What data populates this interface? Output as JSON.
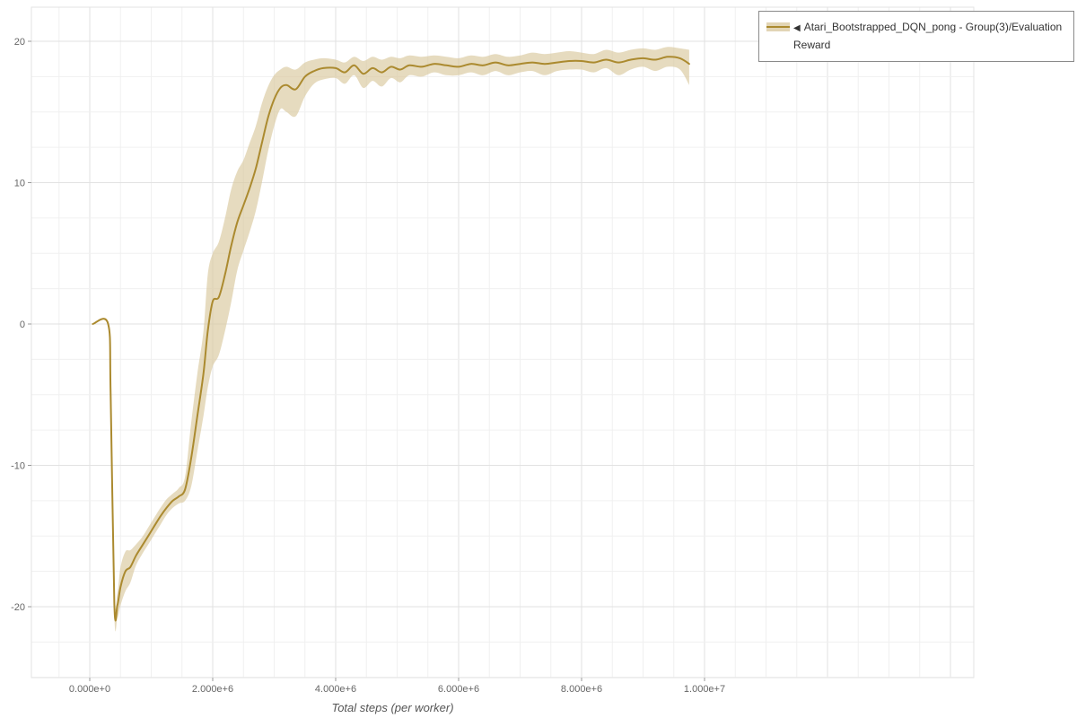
{
  "legend": {
    "collapse_icon": "◀",
    "series_label": "Atari_Bootstrapped_DQN_pong - Group(3)/Evaluation Reward"
  },
  "chart_data": {
    "type": "line",
    "title": "",
    "xlabel": "Total steps (per worker)",
    "ylabel": "",
    "legend_position": "top-right",
    "grid": true,
    "x_tick_labels": [
      "0.000e+0",
      "2.000e+6",
      "4.000e+6",
      "6.000e+6",
      "8.000e+6",
      "1.000e+7"
    ],
    "x_tick_values_millions": [
      0,
      2,
      4,
      6,
      8,
      10
    ],
    "y_ticks": [
      -20,
      -10,
      0,
      10,
      20
    ],
    "xlim_millions": [
      -1,
      14.4
    ],
    "ylim": [
      -25.4,
      22.4
    ],
    "series": [
      {
        "name": "Atari_Bootstrapped_DQN_pong - Group(3)/Evaluation Reward",
        "color": "#ab8a2f",
        "band_color": "#d8c79c",
        "x_millions": [
          0.05,
          0.3,
          0.34,
          0.4,
          0.45,
          0.5,
          0.58,
          0.66,
          0.75,
          0.85,
          0.95,
          1.05,
          1.15,
          1.25,
          1.35,
          1.45,
          1.55,
          1.65,
          1.75,
          1.85,
          1.92,
          2.0,
          2.1,
          2.2,
          2.3,
          2.4,
          2.5,
          2.6,
          2.7,
          2.8,
          2.9,
          3.0,
          3.1,
          3.2,
          3.35,
          3.5,
          3.65,
          3.8,
          4.0,
          4.15,
          4.3,
          4.45,
          4.6,
          4.75,
          4.9,
          5.05,
          5.2,
          5.4,
          5.6,
          5.8,
          6.0,
          6.2,
          6.4,
          6.6,
          6.8,
          7.0,
          7.2,
          7.4,
          7.6,
          7.8,
          8.0,
          8.2,
          8.4,
          8.6,
          8.8,
          9.0,
          9.2,
          9.4,
          9.6,
          9.75
        ],
        "mean": [
          0,
          0,
          -5,
          -19.8,
          -19.9,
          -18.6,
          -17.5,
          -17.2,
          -16.4,
          -15.7,
          -15.0,
          -14.3,
          -13.6,
          -13.0,
          -12.5,
          -12.2,
          -11.7,
          -9.5,
          -6.5,
          -3.5,
          -0.5,
          1.6,
          1.9,
          3.5,
          5.5,
          7.2,
          8.4,
          9.6,
          11.0,
          12.8,
          14.6,
          15.9,
          16.7,
          16.9,
          16.6,
          17.5,
          17.9,
          18.1,
          18.1,
          17.8,
          18.3,
          17.7,
          18.1,
          17.8,
          18.2,
          18.0,
          18.3,
          18.2,
          18.4,
          18.3,
          18.2,
          18.4,
          18.3,
          18.5,
          18.3,
          18.4,
          18.5,
          18.4,
          18.5,
          18.6,
          18.6,
          18.5,
          18.7,
          18.5,
          18.7,
          18.8,
          18.7,
          18.9,
          18.8,
          18.4
        ],
        "lo": [
          0,
          -0.1,
          -6.5,
          -20.6,
          -20.8,
          -19.9,
          -18.9,
          -18.3,
          -17.1,
          -16.3,
          -15.6,
          -14.9,
          -14.2,
          -13.5,
          -13.0,
          -12.7,
          -12.5,
          -11.5,
          -9.0,
          -6.5,
          -4.5,
          -3.0,
          -2.2,
          -0.5,
          1.5,
          3.8,
          5.2,
          6.5,
          8.0,
          10.0,
          12.2,
          14.0,
          15.2,
          15.0,
          14.7,
          16.1,
          17.0,
          17.3,
          17.4,
          17.0,
          17.6,
          16.7,
          17.2,
          16.8,
          17.4,
          17.1,
          17.6,
          17.5,
          17.8,
          17.6,
          17.6,
          17.8,
          17.6,
          17.9,
          17.6,
          17.8,
          17.9,
          17.6,
          17.9,
          18.0,
          18.0,
          17.8,
          18.1,
          17.6,
          18.0,
          18.2,
          17.9,
          18.2,
          18.0,
          16.9
        ],
        "hi": [
          0,
          0.1,
          -3.5,
          -18.9,
          -19.0,
          -17.2,
          -16.1,
          -16.0,
          -15.6,
          -15.1,
          -14.4,
          -13.7,
          -13.0,
          -12.4,
          -12.0,
          -11.6,
          -10.8,
          -7.0,
          -3.5,
          -0.5,
          3.5,
          5.0,
          5.8,
          7.5,
          9.5,
          10.8,
          11.6,
          12.8,
          14.0,
          15.6,
          16.8,
          17.6,
          18.0,
          18.2,
          18.0,
          18.5,
          18.7,
          18.8,
          18.7,
          18.5,
          18.9,
          18.6,
          18.9,
          18.7,
          18.9,
          18.8,
          19.0,
          18.9,
          19.0,
          18.9,
          18.8,
          19.0,
          18.9,
          19.1,
          18.9,
          19.0,
          19.2,
          19.1,
          19.2,
          19.3,
          19.2,
          19.1,
          19.4,
          19.2,
          19.4,
          19.5,
          19.4,
          19.6,
          19.5,
          19.4
        ]
      }
    ],
    "colors": {
      "grid_minor": "#f0f0f0",
      "grid_major": "#e2e2e2",
      "tick_text": "#666666",
      "axis_tick": "#999999"
    }
  }
}
